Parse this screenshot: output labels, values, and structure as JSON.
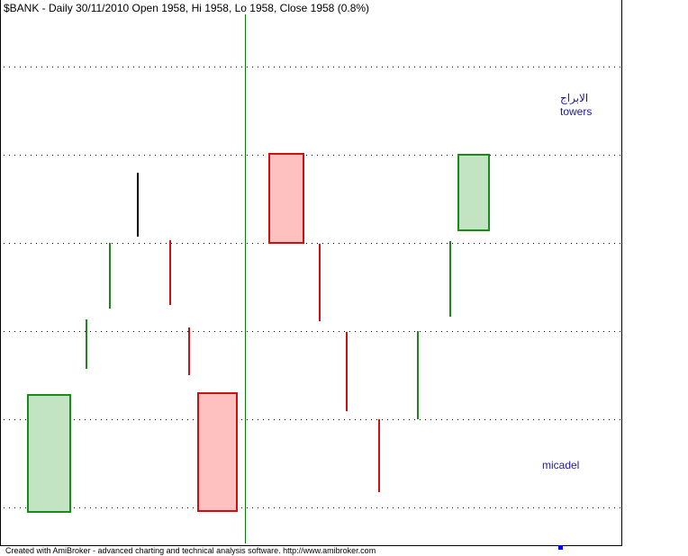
{
  "header": {
    "title": "$BANK - Daily 30/11/2010 Open 1958, Hi 1958, Lo 1958, Close 1958 (0.8%)"
  },
  "annotations": {
    "arabic": "الابراج",
    "towers": "towers",
    "micadel": "micadel"
  },
  "footer": {
    "text": "Created with AmiBroker - advanced charting and technical analysis software. http://www.amibroker.com"
  }
}
